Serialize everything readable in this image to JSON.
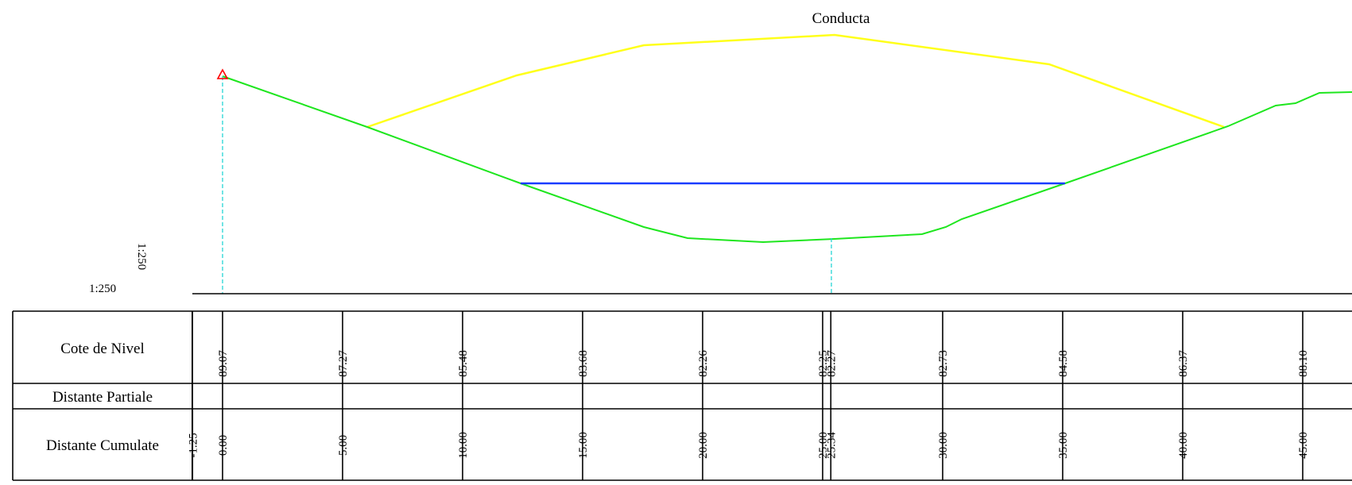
{
  "title": "Conducta",
  "scale_left": "1:250",
  "scale_vertical": "1:250",
  "rows": {
    "cote": "Cote de Nivel",
    "partiale": "Distante Partiale",
    "cumulate": "Distante Cumulate"
  },
  "colors": {
    "terrain": "#1ee61e",
    "embankment": "#ffff1a",
    "water": "#1a3cff",
    "guide": "#25d6d6",
    "marker": "#ff0000",
    "ink": "#000000"
  },
  "stations": [
    {
      "dist": "-1.25",
      "cote": ""
    },
    {
      "dist": "0.00",
      "cote": "89.07"
    },
    {
      "dist": "5.00",
      "cote": "87.27"
    },
    {
      "dist": "10.00",
      "cote": "85.48"
    },
    {
      "dist": "15.00",
      "cote": "83.68"
    },
    {
      "dist": "20.00",
      "cote": "82.26"
    },
    {
      "dist": "25.00",
      "cote": "82.25"
    },
    {
      "dist": "25.34",
      "cote": "82.27"
    },
    {
      "dist": "30.00",
      "cote": "82.73"
    },
    {
      "dist": "35.00",
      "cote": "84.58"
    },
    {
      "dist": "40.00",
      "cote": "86.37"
    },
    {
      "dist": "45.00",
      "cote": "88.10"
    }
  ]
}
